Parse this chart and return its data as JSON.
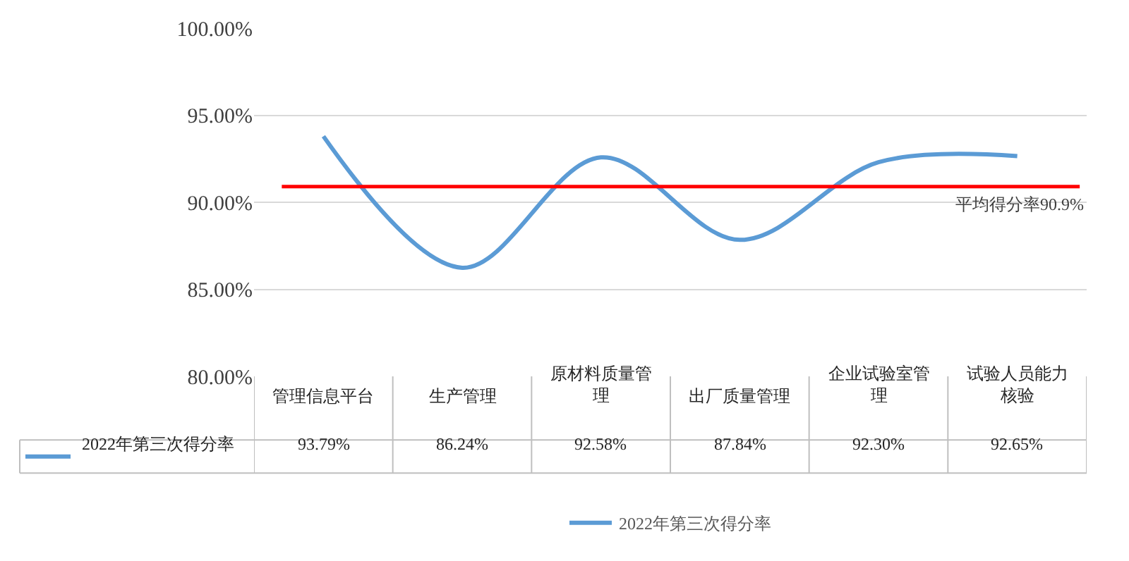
{
  "chart_data": {
    "type": "line",
    "categories": [
      "管理信息平台",
      "生产管理",
      "原材料质量管理",
      "出厂质量管理",
      "企业试验室管理",
      "试验人员能力核验"
    ],
    "series": [
      {
        "name": "2022年第三次得分率",
        "color": "#5b9bd5",
        "values": [
          93.79,
          86.24,
          92.58,
          87.84,
          92.3,
          92.65
        ],
        "value_labels": [
          "93.79%",
          "86.24%",
          "92.58%",
          "87.84%",
          "92.30%",
          "92.65%"
        ]
      }
    ],
    "ylim": [
      80,
      100
    ],
    "yticks": [
      {
        "value": 80,
        "label": "80.00%"
      },
      {
        "value": 85,
        "label": "85.00%"
      },
      {
        "value": 90,
        "label": "90.00%"
      },
      {
        "value": 95,
        "label": "95.00%"
      },
      {
        "value": 100,
        "label": "100.00%"
      }
    ],
    "ref_lines": [
      {
        "axis": "y",
        "value": 90.9,
        "label": "平均得分率90.9%",
        "color": "#ff0000"
      }
    ],
    "grid": "y",
    "legend": "bottom",
    "marker": "none",
    "line_style": "solid"
  }
}
